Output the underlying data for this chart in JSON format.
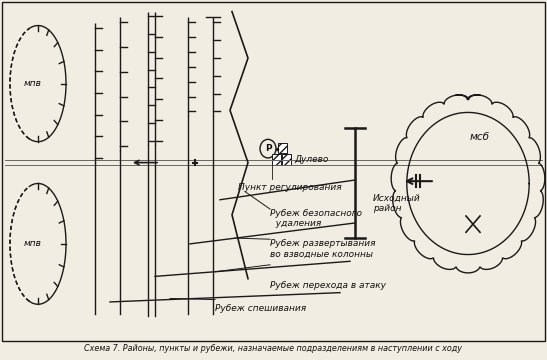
{
  "title": "Схема 7. Районы, пункты и рубежи, назначаемые подразделениям в наступлении с ходу",
  "bg_color": "#f2ede3",
  "border_color": "#1a1a1a",
  "text_color": "#111111",
  "figsize": [
    5.47,
    3.6
  ],
  "dpi": 100,
  "labels": {
    "mpl_top": "мпв",
    "mpl_bot": "мпв",
    "msb": "мсб",
    "dulevo": "Дулево",
    "punkt_reg": "Пункт регулирования",
    "rubezh_bez": "Рубеж безопасного\n  удаления",
    "rubezh_razv": "Рубеж развертывания\nво взводные колонны",
    "rubezh_per": "Рубеж перехода в атаку",
    "rubezh_spesh": "Рубеж спешивания",
    "iskh_rayon": "Исходный\nрайон"
  }
}
